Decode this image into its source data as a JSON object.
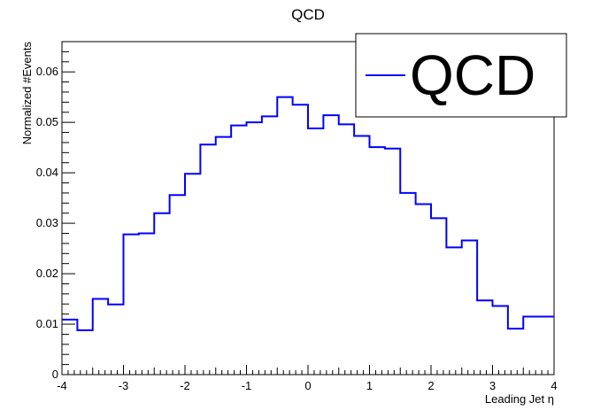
{
  "chart_data": {
    "type": "step-histogram",
    "title": "QCD",
    "xlabel": "Leading Jet η",
    "ylabel": "Normalized #Events",
    "xlim": [
      -4,
      4
    ],
    "ylim": [
      0,
      0.066
    ],
    "x_ticks": [
      "-4",
      "-3",
      "-2",
      "-1",
      "0",
      "1",
      "2",
      "3",
      "4"
    ],
    "y_ticks": [
      "0",
      "0.01",
      "0.02",
      "0.03",
      "0.04",
      "0.05",
      "0.06"
    ],
    "legend": {
      "position": "top-right",
      "entries": [
        "QCD"
      ]
    },
    "series": [
      {
        "name": "QCD",
        "color": "#0000ff",
        "bin_edges": [
          -4.0,
          -3.75,
          -3.5,
          -3.25,
          -3.0,
          -2.75,
          -2.5,
          -2.25,
          -2.0,
          -1.75,
          -1.5,
          -1.25,
          -1.0,
          -0.75,
          -0.5,
          -0.25,
          0.0,
          0.25,
          0.5,
          0.75,
          1.0,
          1.25,
          1.5,
          1.75,
          2.0,
          2.25,
          2.5,
          2.75,
          3.0,
          3.25,
          3.5,
          3.75,
          4.0
        ],
        "values": [
          0.0109,
          0.0088,
          0.015,
          0.0139,
          0.0278,
          0.028,
          0.032,
          0.0356,
          0.0398,
          0.0456,
          0.0471,
          0.0494,
          0.05,
          0.0512,
          0.055,
          0.0535,
          0.0488,
          0.0514,
          0.0496,
          0.0473,
          0.0451,
          0.0448,
          0.036,
          0.0338,
          0.031,
          0.0252,
          0.0266,
          0.0147,
          0.0136,
          0.0091,
          0.0115,
          0.0115
        ]
      }
    ]
  }
}
